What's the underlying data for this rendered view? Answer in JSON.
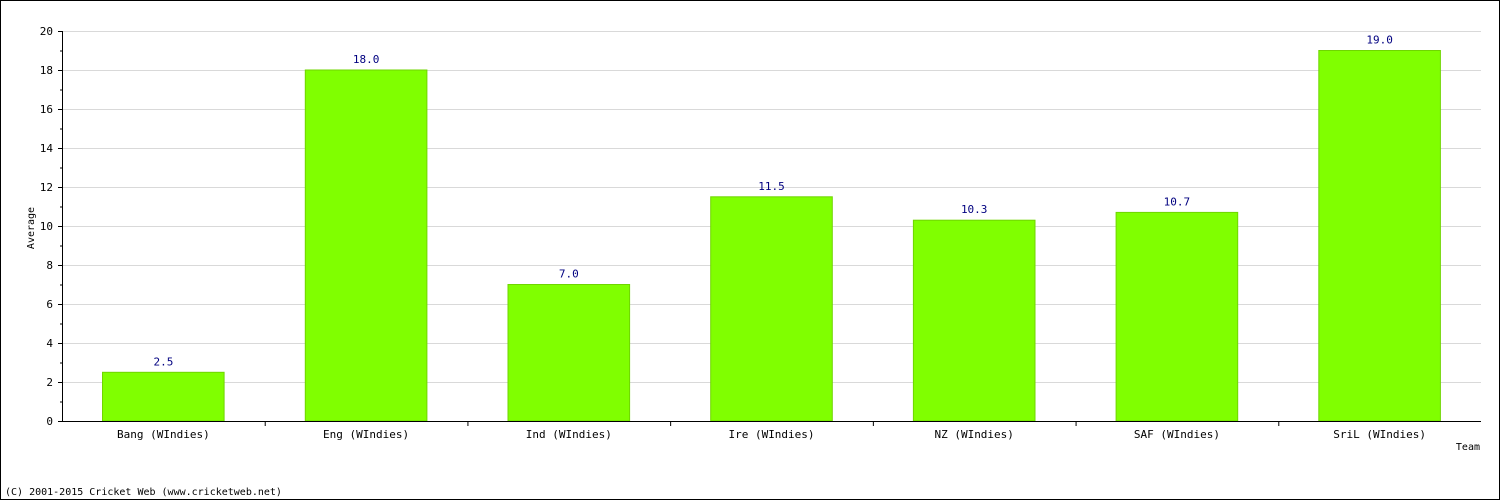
{
  "chart_data": {
    "type": "bar",
    "categories": [
      "Bang (WIndies)",
      "Eng (WIndies)",
      "Ind (WIndies)",
      "Ire (WIndies)",
      "NZ (WIndies)",
      "SAF (WIndies)",
      "SriL (WIndies)"
    ],
    "values": [
      2.5,
      18.0,
      7.0,
      11.5,
      10.3,
      10.7,
      19.0
    ],
    "data_labels": [
      "2.5",
      "18.0",
      "7.0",
      "11.5",
      "10.3",
      "10.7",
      "19.0"
    ],
    "xlabel": "Team",
    "ylabel": "Average",
    "ylim": [
      0,
      20
    ],
    "y_ticks": [
      0,
      2,
      4,
      6,
      8,
      10,
      12,
      14,
      16,
      18,
      20
    ],
    "grid": true,
    "bar_color": "#80ff00",
    "label_color": "#000080"
  },
  "footer": {
    "copyright": "(C) 2001-2015 Cricket Web (www.cricketweb.net)"
  }
}
